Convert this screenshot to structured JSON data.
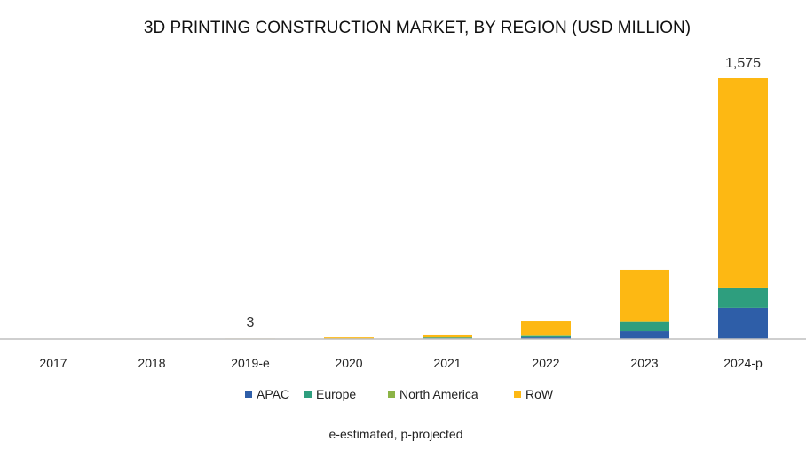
{
  "chart_data": {
    "type": "bar",
    "stacked": true,
    "title": "3D PRINTING CONSTRUCTION MARKET, BY REGION (USD MILLION)",
    "xlabel": "",
    "ylabel": "",
    "categories": [
      "2017",
      "2018",
      "2019-e",
      "2020",
      "2021",
      "2022",
      "2023",
      "2024-p"
    ],
    "series": [
      {
        "name": "APAC",
        "color": "#2E5EA8",
        "values": [
          0,
          0,
          0.5,
          1,
          4,
          10,
          48,
          188
        ]
      },
      {
        "name": "Europe",
        "color": "#2E9E7E",
        "values": [
          0,
          0,
          0.5,
          1,
          4,
          12,
          54,
          118
        ]
      },
      {
        "name": "North America",
        "color": "#8CB446",
        "values": [
          0,
          0,
          0.2,
          1,
          2,
          4,
          3,
          5
        ]
      },
      {
        "name": "RoW",
        "color": "#FDB813",
        "values": [
          0,
          0,
          1.8,
          7,
          17,
          81,
          313,
          1264
        ]
      }
    ],
    "data_labels": [
      {
        "category": "2019-e",
        "text": "3"
      },
      {
        "category": "2024-p",
        "text": "1,575"
      }
    ],
    "ylim": [
      0,
      1575
    ],
    "grid": false,
    "legend_position": "bottom",
    "footnote": "e-estimated, p-projected"
  }
}
